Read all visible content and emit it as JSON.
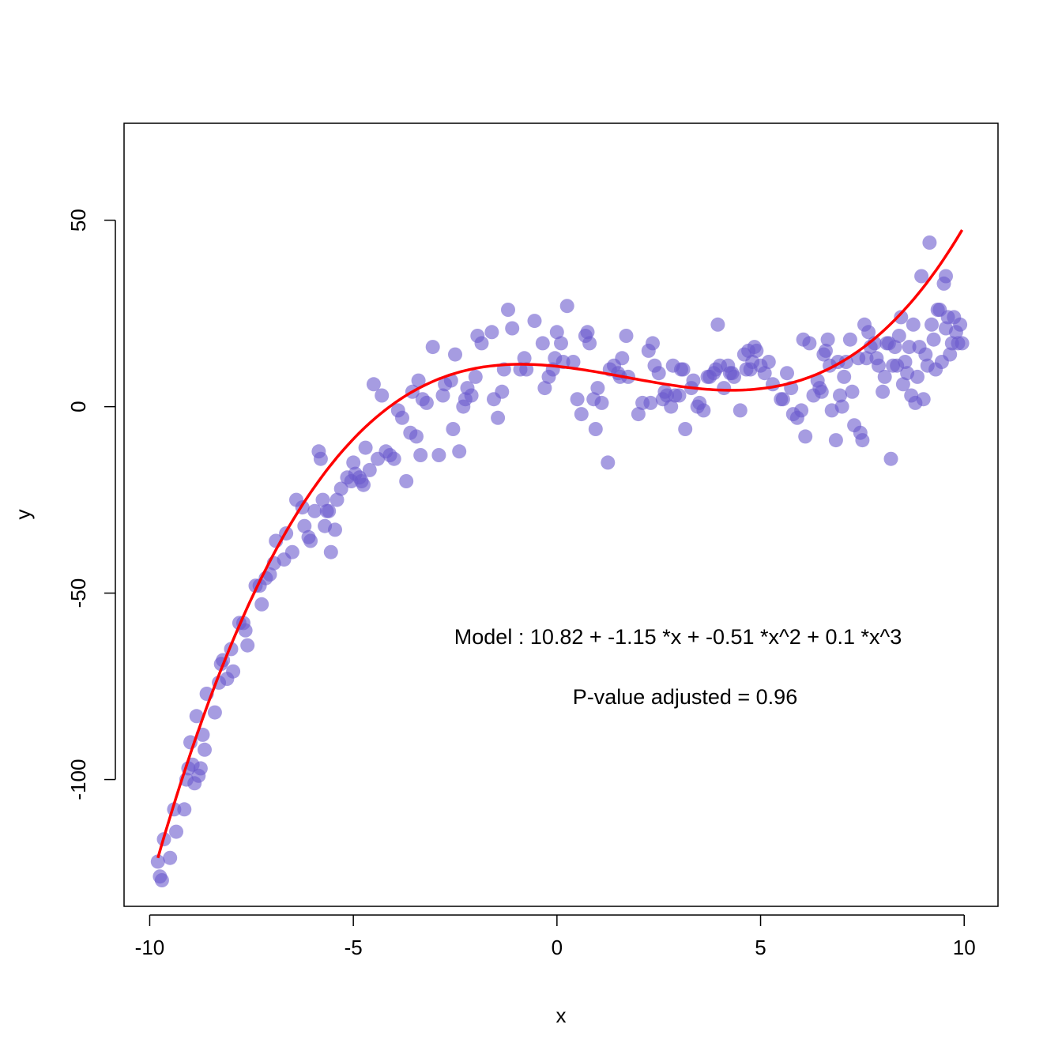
{
  "chart_data": {
    "type": "scatter",
    "xlabel": "x",
    "ylabel": "y",
    "xlim": [
      -10.63,
      10.83
    ],
    "ylim": [
      -134,
      76
    ],
    "x_ticks": [
      -10,
      -5,
      0,
      5,
      10
    ],
    "y_ticks": [
      -100,
      -50,
      0,
      50
    ],
    "x_tick_labels": [
      "-10",
      "-5",
      "0",
      "5",
      "10"
    ],
    "y_tick_labels": [
      "-100",
      "-50",
      "0",
      "50"
    ],
    "grid": false,
    "legend": "none",
    "point_color": "#6a5acd",
    "point_opacity": 0.6,
    "fit_color": "#ff0000",
    "fit": {
      "type": "cubic",
      "coefficients": [
        10.82,
        -1.15,
        -0.51,
        0.1
      ],
      "x_range": [
        -9.8,
        9.95
      ]
    },
    "annotations": [
      "Model :  10.82  +  -1.15 *x + -0.51 *x^2 + 0.1 *x^3",
      "P-value adjusted =  0.96"
    ],
    "series": [
      {
        "points": [
          [
            -9.8,
            -122
          ],
          [
            -9.75,
            -126
          ],
          [
            -9.7,
            -127
          ],
          [
            -9.65,
            -116
          ],
          [
            -9.5,
            -121
          ],
          [
            -9.4,
            -108
          ],
          [
            -9.35,
            -114
          ],
          [
            -9.15,
            -108
          ],
          [
            -9.1,
            -100
          ],
          [
            -9.05,
            -97
          ],
          [
            -9.0,
            -90
          ],
          [
            -8.95,
            -96
          ],
          [
            -8.9,
            -101
          ],
          [
            -8.85,
            -83
          ],
          [
            -8.8,
            -99
          ],
          [
            -8.75,
            -97
          ],
          [
            -8.7,
            -88
          ],
          [
            -8.65,
            -92
          ],
          [
            -8.6,
            -77
          ],
          [
            -8.4,
            -82
          ],
          [
            -8.3,
            -74
          ],
          [
            -8.25,
            -69
          ],
          [
            -8.2,
            -68
          ],
          [
            -8.1,
            -73
          ],
          [
            -8.0,
            -65
          ],
          [
            -7.95,
            -71
          ],
          [
            -7.8,
            -58
          ],
          [
            -7.7,
            -58
          ],
          [
            -7.65,
            -60
          ],
          [
            -7.6,
            -64
          ],
          [
            -7.4,
            -48
          ],
          [
            -7.3,
            -48
          ],
          [
            -7.25,
            -53
          ],
          [
            -7.15,
            -46
          ],
          [
            -7.05,
            -45
          ],
          [
            -6.95,
            -42
          ],
          [
            -6.9,
            -36
          ],
          [
            -6.7,
            -41
          ],
          [
            -6.65,
            -34
          ],
          [
            -6.5,
            -39
          ],
          [
            -6.4,
            -25
          ],
          [
            -6.25,
            -27
          ],
          [
            -6.2,
            -32
          ],
          [
            -6.1,
            -35
          ],
          [
            -6.05,
            -36
          ],
          [
            -5.95,
            -28
          ],
          [
            -5.85,
            -12
          ],
          [
            -5.8,
            -14
          ],
          [
            -5.75,
            -25
          ],
          [
            -5.7,
            -32
          ],
          [
            -5.65,
            -28
          ],
          [
            -5.6,
            -28
          ],
          [
            -5.55,
            -39
          ],
          [
            -5.45,
            -33
          ],
          [
            -5.4,
            -25
          ],
          [
            -5.3,
            -22
          ],
          [
            -5.15,
            -19
          ],
          [
            -5.05,
            -20
          ],
          [
            -5.0,
            -15
          ],
          [
            -4.95,
            -18
          ],
          [
            -4.85,
            -19
          ],
          [
            -4.8,
            -20
          ],
          [
            -4.75,
            -21
          ],
          [
            -4.7,
            -11
          ],
          [
            -4.6,
            -17
          ],
          [
            -4.5,
            6
          ],
          [
            -4.4,
            -14
          ],
          [
            -4.3,
            3
          ],
          [
            -4.2,
            -12
          ],
          [
            -4.1,
            -13
          ],
          [
            -4.0,
            -14
          ],
          [
            -3.9,
            -1
          ],
          [
            -3.8,
            -3
          ],
          [
            -3.7,
            -20
          ],
          [
            -3.6,
            -7
          ],
          [
            -3.55,
            4
          ],
          [
            -3.45,
            -8
          ],
          [
            -3.4,
            7
          ],
          [
            -3.35,
            -13
          ],
          [
            -3.3,
            2
          ],
          [
            -3.2,
            1
          ],
          [
            -3.05,
            16
          ],
          [
            -2.9,
            -13
          ],
          [
            -2.8,
            3
          ],
          [
            -2.75,
            6
          ],
          [
            -2.6,
            7
          ],
          [
            -2.55,
            -6
          ],
          [
            -2.5,
            14
          ],
          [
            -2.4,
            -12
          ],
          [
            -2.3,
            0
          ],
          [
            -2.25,
            2
          ],
          [
            -2.2,
            5
          ],
          [
            -2.1,
            3
          ],
          [
            -2.0,
            8
          ],
          [
            -1.95,
            19
          ],
          [
            -1.85,
            17
          ],
          [
            -1.6,
            20
          ],
          [
            -1.55,
            2
          ],
          [
            -1.45,
            -3
          ],
          [
            -1.35,
            4
          ],
          [
            -1.3,
            10
          ],
          [
            -1.2,
            26
          ],
          [
            -1.1,
            21
          ],
          [
            -0.9,
            10
          ],
          [
            -0.8,
            13
          ],
          [
            -0.75,
            10
          ],
          [
            -0.55,
            23
          ],
          [
            -0.35,
            17
          ],
          [
            -0.3,
            5
          ],
          [
            -0.2,
            8
          ],
          [
            -0.1,
            10
          ],
          [
            -0.05,
            13
          ],
          [
            0.0,
            20
          ],
          [
            0.1,
            17
          ],
          [
            0.15,
            12
          ],
          [
            0.25,
            27
          ],
          [
            0.4,
            12
          ],
          [
            0.5,
            2
          ],
          [
            0.6,
            -2
          ],
          [
            0.7,
            19
          ],
          [
            0.75,
            20
          ],
          [
            0.8,
            17
          ],
          [
            0.9,
            2
          ],
          [
            0.95,
            -6
          ],
          [
            1.0,
            5
          ],
          [
            1.1,
            1
          ],
          [
            1.25,
            -15
          ],
          [
            1.3,
            10
          ],
          [
            1.4,
            11
          ],
          [
            1.5,
            9
          ],
          [
            1.55,
            8
          ],
          [
            1.6,
            13
          ],
          [
            1.7,
            19
          ],
          [
            1.75,
            8
          ],
          [
            2.0,
            -2
          ],
          [
            2.1,
            1
          ],
          [
            2.25,
            15
          ],
          [
            2.3,
            1
          ],
          [
            2.35,
            17
          ],
          [
            2.4,
            11
          ],
          [
            2.5,
            9
          ],
          [
            2.6,
            2
          ],
          [
            2.65,
            4
          ],
          [
            2.7,
            3
          ],
          [
            2.8,
            0
          ],
          [
            2.85,
            11
          ],
          [
            2.9,
            3
          ],
          [
            3.0,
            3
          ],
          [
            3.05,
            10
          ],
          [
            3.1,
            10
          ],
          [
            3.15,
            -6
          ],
          [
            3.3,
            5
          ],
          [
            3.35,
            7
          ],
          [
            3.45,
            0
          ],
          [
            3.5,
            1
          ],
          [
            3.6,
            -1
          ],
          [
            3.7,
            8
          ],
          [
            3.75,
            8
          ],
          [
            3.85,
            9
          ],
          [
            3.9,
            10
          ],
          [
            3.95,
            22
          ],
          [
            4.0,
            11
          ],
          [
            4.1,
            5
          ],
          [
            4.2,
            11
          ],
          [
            4.25,
            9
          ],
          [
            4.3,
            9
          ],
          [
            4.35,
            8
          ],
          [
            4.5,
            -1
          ],
          [
            4.6,
            14
          ],
          [
            4.65,
            10
          ],
          [
            4.7,
            15
          ],
          [
            4.75,
            10
          ],
          [
            4.8,
            12
          ],
          [
            4.85,
            16
          ],
          [
            4.9,
            15
          ],
          [
            5.0,
            11
          ],
          [
            5.1,
            9
          ],
          [
            5.2,
            12
          ],
          [
            5.3,
            6
          ],
          [
            5.5,
            2
          ],
          [
            5.55,
            2
          ],
          [
            5.65,
            9
          ],
          [
            5.75,
            5
          ],
          [
            5.8,
            -2
          ],
          [
            5.9,
            -3
          ],
          [
            6.0,
            -1
          ],
          [
            6.1,
            -8
          ],
          [
            6.2,
            17
          ],
          [
            6.3,
            3
          ],
          [
            6.4,
            7
          ],
          [
            6.5,
            4
          ],
          [
            6.55,
            14
          ],
          [
            6.6,
            15
          ],
          [
            6.65,
            18
          ],
          [
            6.75,
            -1
          ],
          [
            6.85,
            -9
          ],
          [
            6.95,
            3
          ],
          [
            7.0,
            0
          ],
          [
            7.1,
            12
          ],
          [
            7.2,
            18
          ],
          [
            7.25,
            4
          ],
          [
            7.3,
            -5
          ],
          [
            7.4,
            13
          ],
          [
            7.45,
            -7
          ],
          [
            7.5,
            -9
          ],
          [
            7.6,
            13
          ],
          [
            7.65,
            20
          ],
          [
            7.7,
            16
          ],
          [
            7.8,
            17
          ],
          [
            7.9,
            11
          ],
          [
            8.0,
            4
          ],
          [
            8.1,
            17
          ],
          [
            8.15,
            17
          ],
          [
            8.2,
            -14
          ],
          [
            8.25,
            11
          ],
          [
            8.35,
            11
          ],
          [
            8.4,
            19
          ],
          [
            8.5,
            6
          ],
          [
            8.55,
            12
          ],
          [
            8.6,
            9
          ],
          [
            8.7,
            3
          ],
          [
            8.8,
            1
          ],
          [
            8.85,
            8
          ],
          [
            8.9,
            16
          ],
          [
            9.0,
            2
          ],
          [
            9.05,
            14
          ],
          [
            9.1,
            11
          ],
          [
            9.2,
            22
          ],
          [
            9.25,
            18
          ],
          [
            9.3,
            10
          ],
          [
            9.4,
            26
          ],
          [
            9.45,
            12
          ],
          [
            9.5,
            33
          ],
          [
            9.55,
            21
          ],
          [
            9.6,
            24
          ],
          [
            9.65,
            14
          ],
          [
            9.7,
            17
          ],
          [
            9.75,
            24
          ],
          [
            9.8,
            20
          ],
          [
            9.85,
            17
          ],
          [
            9.9,
            22
          ],
          [
            9.95,
            17
          ],
          [
            6.05,
            18
          ],
          [
            6.45,
            5
          ],
          [
            6.7,
            11
          ],
          [
            6.9,
            12
          ],
          [
            7.05,
            8
          ],
          [
            7.55,
            22
          ],
          [
            7.85,
            13
          ],
          [
            8.05,
            8
          ],
          [
            8.3,
            16
          ],
          [
            8.45,
            24
          ],
          [
            8.65,
            16
          ],
          [
            8.75,
            22
          ],
          [
            8.95,
            35
          ],
          [
            9.15,
            44
          ],
          [
            9.35,
            26
          ],
          [
            9.55,
            35
          ]
        ]
      }
    ]
  }
}
